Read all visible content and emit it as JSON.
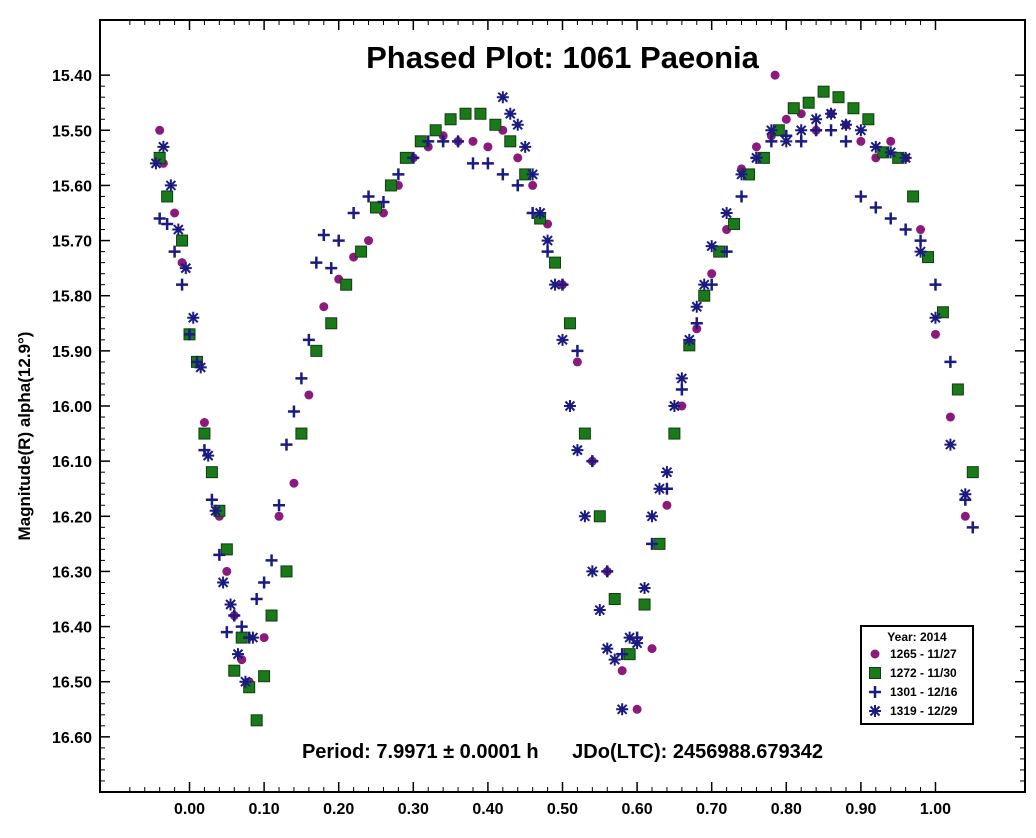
{
  "chart_data": {
    "type": "scatter",
    "title": "Phased Plot: 1061 Paeonia",
    "ylabel": "Magnitude(R) alpha(12.9°)",
    "xlabel": "",
    "xlim": [
      -0.12,
      1.12
    ],
    "ylim": [
      15.3,
      16.7
    ],
    "y_inverted": true,
    "x_ticks": [
      "0.00",
      "0.10",
      "0.20",
      "0.30",
      "0.40",
      "0.50",
      "0.60",
      "0.70",
      "0.80",
      "0.90",
      "1.00"
    ],
    "y_ticks": [
      "15.40",
      "15.50",
      "15.60",
      "15.70",
      "15.80",
      "15.90",
      "16.00",
      "16.10",
      "16.20",
      "16.30",
      "16.40",
      "16.50",
      "16.60"
    ],
    "grid": false,
    "legend_position": "bottom-right",
    "legend_title": "Year: 2014",
    "footer_period": "Period: 7.9971 ± 0.0001 h",
    "footer_epoch": "JDo(LTC): 2456988.679342",
    "series": [
      {
        "name": "1265 - 11/27",
        "marker": "circle",
        "color": "#8b1a7c",
        "x": [
          -0.04,
          -0.035,
          -0.02,
          -0.01,
          0.0,
          0.01,
          0.02,
          0.03,
          0.04,
          0.05,
          0.06,
          0.07,
          0.08,
          0.1,
          0.12,
          0.14,
          0.16,
          0.18,
          0.2,
          0.22,
          0.24,
          0.26,
          0.28,
          0.3,
          0.32,
          0.34,
          0.36,
          0.38,
          0.4,
          0.42,
          0.44,
          0.46,
          0.48,
          0.5,
          0.52,
          0.54,
          0.56,
          0.58,
          0.6,
          0.62,
          0.64,
          0.66,
          0.68,
          0.7,
          0.72,
          0.74,
          0.76,
          0.78,
          0.785,
          0.8,
          0.82,
          0.84,
          0.86,
          0.88,
          0.9,
          0.92,
          0.94,
          0.96,
          0.98,
          1.0,
          1.02,
          1.04
        ],
        "y": [
          15.5,
          15.56,
          15.65,
          15.74,
          15.87,
          15.92,
          16.03,
          16.12,
          16.2,
          16.3,
          16.38,
          16.46,
          16.5,
          16.42,
          16.2,
          16.14,
          15.98,
          15.82,
          15.77,
          15.73,
          15.7,
          15.65,
          15.6,
          15.55,
          15.53,
          15.51,
          15.52,
          15.52,
          15.53,
          15.5,
          15.55,
          15.6,
          15.67,
          15.78,
          15.92,
          16.1,
          16.3,
          16.48,
          16.55,
          16.44,
          16.18,
          16.0,
          15.86,
          15.76,
          15.68,
          15.57,
          15.53,
          15.51,
          15.4,
          15.48,
          15.47,
          15.5,
          15.47,
          15.49,
          15.52,
          15.55,
          15.52,
          15.55,
          15.68,
          15.87,
          16.02,
          16.2
        ]
      },
      {
        "name": "1272 - 11/30",
        "marker": "square",
        "color": "#1a7a1a",
        "x": [
          -0.04,
          -0.03,
          -0.01,
          0.0,
          0.01,
          0.02,
          0.03,
          0.04,
          0.05,
          0.06,
          0.07,
          0.08,
          0.09,
          0.1,
          0.11,
          0.13,
          0.15,
          0.17,
          0.19,
          0.21,
          0.23,
          0.25,
          0.27,
          0.29,
          0.31,
          0.33,
          0.35,
          0.37,
          0.39,
          0.41,
          0.43,
          0.45,
          0.47,
          0.49,
          0.51,
          0.53,
          0.55,
          0.57,
          0.59,
          0.61,
          0.63,
          0.65,
          0.67,
          0.69,
          0.71,
          0.73,
          0.75,
          0.77,
          0.79,
          0.81,
          0.83,
          0.85,
          0.87,
          0.89,
          0.91,
          0.93,
          0.95,
          0.97,
          0.99,
          1.01,
          1.03,
          1.05
        ],
        "y": [
          15.55,
          15.62,
          15.7,
          15.87,
          15.92,
          16.05,
          16.12,
          16.19,
          16.26,
          16.48,
          16.42,
          16.51,
          16.57,
          16.49,
          16.38,
          16.3,
          16.05,
          15.9,
          15.85,
          15.78,
          15.72,
          15.64,
          15.6,
          15.55,
          15.52,
          15.5,
          15.48,
          15.47,
          15.47,
          15.49,
          15.52,
          15.58,
          15.66,
          15.74,
          15.85,
          16.05,
          16.2,
          16.35,
          16.45,
          16.36,
          16.25,
          16.05,
          15.89,
          15.8,
          15.72,
          15.67,
          15.58,
          15.55,
          15.5,
          15.46,
          15.45,
          15.43,
          15.44,
          15.46,
          15.48,
          15.54,
          15.55,
          15.62,
          15.73,
          15.83,
          15.97,
          16.12
        ]
      },
      {
        "name": "1301 - 12/16",
        "marker": "plus",
        "color": "#1a1a80",
        "x": [
          -0.04,
          -0.03,
          -0.02,
          -0.01,
          0.0,
          0.01,
          0.02,
          0.03,
          0.04,
          0.05,
          0.06,
          0.07,
          0.08,
          0.09,
          0.1,
          0.11,
          0.12,
          0.13,
          0.14,
          0.15,
          0.16,
          0.17,
          0.18,
          0.19,
          0.2,
          0.22,
          0.24,
          0.26,
          0.28,
          0.3,
          0.32,
          0.34,
          0.36,
          0.38,
          0.4,
          0.42,
          0.44,
          0.46,
          0.48,
          0.5,
          0.52,
          0.54,
          0.56,
          0.58,
          0.6,
          0.62,
          0.64,
          0.66,
          0.68,
          0.7,
          0.72,
          0.74,
          0.76,
          0.78,
          0.8,
          0.82,
          0.84,
          0.86,
          0.88,
          0.9,
          0.92,
          0.94,
          0.96,
          0.98,
          1.0,
          1.02,
          1.04,
          1.05
        ],
        "y": [
          15.66,
          15.67,
          15.72,
          15.78,
          15.87,
          15.92,
          16.08,
          16.17,
          16.27,
          16.41,
          16.38,
          16.4,
          16.42,
          16.35,
          16.32,
          16.28,
          16.18,
          16.07,
          16.01,
          15.95,
          15.88,
          15.74,
          15.69,
          15.75,
          15.7,
          15.65,
          15.62,
          15.63,
          15.58,
          15.55,
          15.52,
          15.52,
          15.52,
          15.56,
          15.56,
          15.58,
          15.6,
          15.65,
          15.72,
          15.78,
          15.9,
          16.1,
          16.3,
          16.45,
          16.42,
          16.25,
          16.15,
          15.97,
          15.85,
          15.78,
          15.72,
          15.62,
          15.55,
          15.52,
          15.51,
          15.52,
          15.5,
          15.5,
          15.52,
          15.62,
          15.64,
          15.66,
          15.68,
          15.7,
          15.78,
          15.92,
          16.17,
          16.22
        ]
      },
      {
        "name": "1319 - 12/29",
        "marker": "star",
        "color": "#1a1a80",
        "x": [
          -0.045,
          -0.035,
          -0.025,
          -0.015,
          -0.005,
          0.005,
          0.015,
          0.025,
          0.035,
          0.045,
          0.055,
          0.065,
          0.075,
          0.085,
          0.42,
          0.43,
          0.44,
          0.45,
          0.46,
          0.47,
          0.48,
          0.49,
          0.5,
          0.51,
          0.52,
          0.53,
          0.54,
          0.55,
          0.56,
          0.57,
          0.58,
          0.59,
          0.6,
          0.61,
          0.62,
          0.63,
          0.64,
          0.65,
          0.66,
          0.67,
          0.68,
          0.69,
          0.7,
          0.72,
          0.74,
          0.76,
          0.78,
          0.8,
          0.82,
          0.84,
          0.86,
          0.88,
          0.9,
          0.92,
          0.94,
          0.96,
          0.98,
          1.0,
          1.02,
          1.04
        ],
        "y": [
          15.56,
          15.53,
          15.6,
          15.68,
          15.75,
          15.84,
          15.93,
          16.09,
          16.19,
          16.32,
          16.36,
          16.45,
          16.5,
          16.42,
          15.44,
          15.47,
          15.49,
          15.53,
          15.58,
          15.65,
          15.7,
          15.78,
          15.88,
          16.0,
          16.08,
          16.2,
          16.3,
          16.37,
          16.44,
          16.46,
          16.55,
          16.42,
          16.43,
          16.33,
          16.2,
          16.15,
          16.12,
          16.0,
          15.95,
          15.88,
          15.82,
          15.78,
          15.71,
          15.65,
          15.58,
          15.55,
          15.5,
          15.52,
          15.5,
          15.48,
          15.47,
          15.49,
          15.5,
          15.53,
          15.54,
          15.55,
          15.72,
          15.84,
          16.07,
          16.16
        ]
      }
    ]
  }
}
